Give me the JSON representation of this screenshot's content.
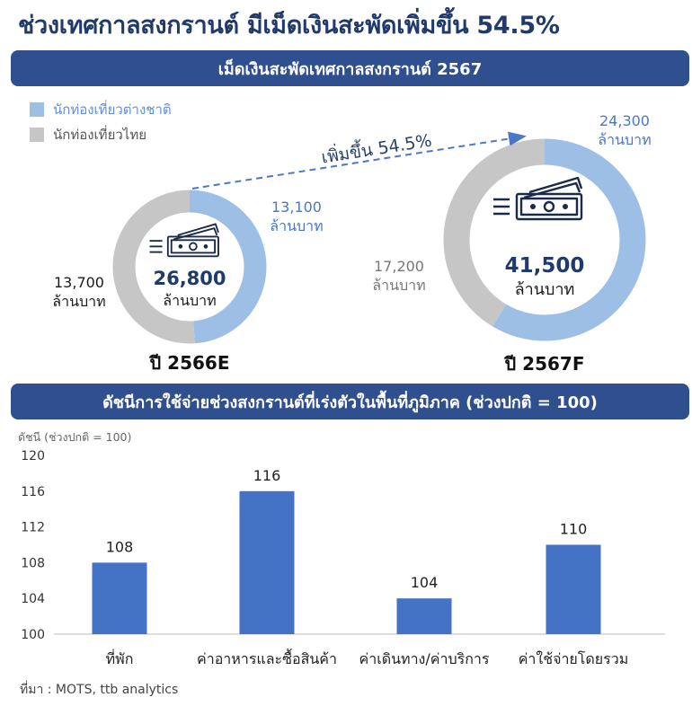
{
  "title": "ช่วงเทศกาลสงกรานต์ มีเม็ดเงินสะพัดเพิ่มขึ้น 54.5%",
  "banner_top": "เม็ดเงินสะพัดเทศกาลสงกรานต์ 2567",
  "banner_bottom": "ดัชนีการใช้จ่ายช่วงสงกรานต์ที่เร่งตัวในพื้นที่ภูมิภาค (ช่วงปกติ = 100)",
  "legend": {
    "international": "นักท่องเที่ยวต่างชาติ",
    "thai": "นักท่องเที่ยวไทย"
  },
  "colors": {
    "international": "#9dbfe6",
    "thai": "#c6c6c6",
    "bar": "#4472c4",
    "banner": "#2f4f8f"
  },
  "growth_label": "เพิ่มขึ้น 54.5%",
  "unit": "ล้านบาท",
  "source": "ที่มา : MOTS, ttb analytics",
  "chart_data": [
    {
      "type": "pie",
      "label": "ปี 2566E",
      "total": "26,800",
      "slices": [
        {
          "name": "นักท่องเที่ยวต่างชาติ",
          "value": 13100,
          "label": "13,100"
        },
        {
          "name": "นักท่องเที่ยวไทย",
          "value": 13700,
          "label": "13,700"
        }
      ]
    },
    {
      "type": "pie",
      "label": "ปี 2567F",
      "total": "41,500",
      "slices": [
        {
          "name": "นักท่องเที่ยวต่างชาติ",
          "value": 24300,
          "label": "24,300"
        },
        {
          "name": "นักท่องเที่ยวไทย",
          "value": 17200,
          "label": "17,200"
        }
      ]
    },
    {
      "type": "bar",
      "ylabel": "ดัชนี (ช่วงปกติ = 100)",
      "ylim": [
        100,
        120
      ],
      "yticks": [
        "100",
        "104",
        "108",
        "112",
        "116",
        "120"
      ],
      "categories": [
        "ที่พัก",
        "ค่าอาหารและซื้อสินค้า",
        "ค่าเดินทาง/ค่าบริการ",
        "ค่าใช้จ่ายโดยรวม"
      ],
      "values": [
        108,
        116,
        104,
        110
      ]
    }
  ]
}
